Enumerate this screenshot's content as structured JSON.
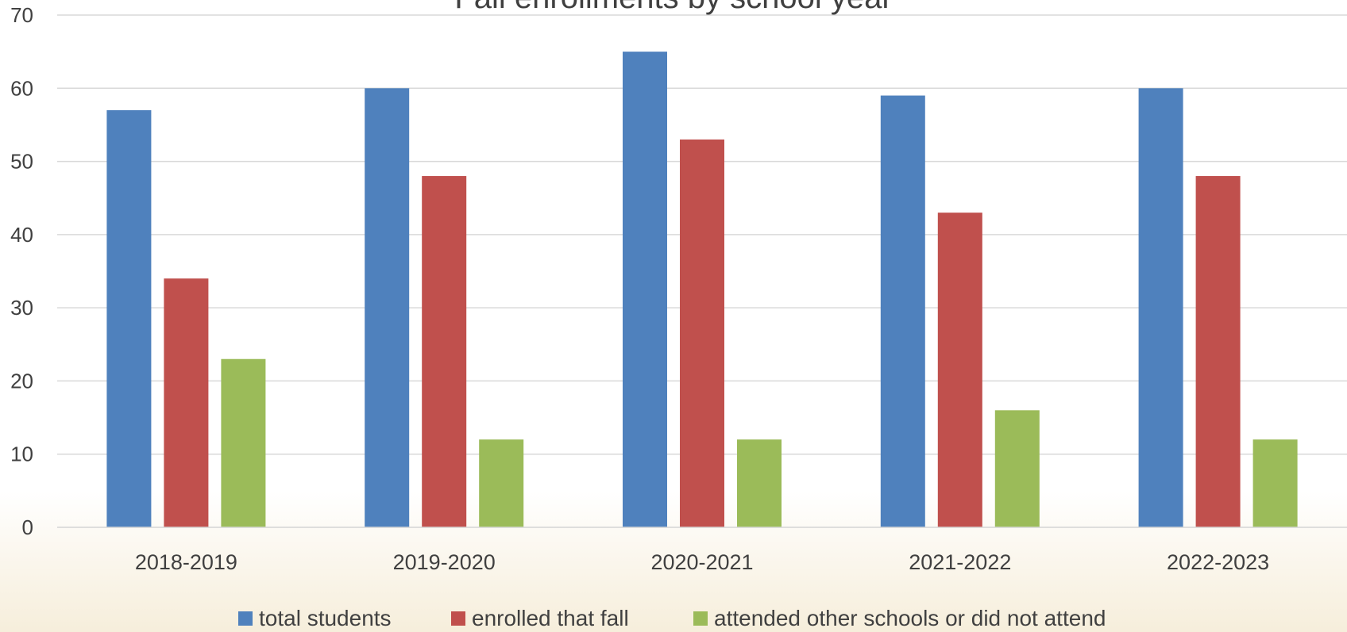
{
  "chart_data": {
    "type": "bar",
    "title": "Fall enrollments by school year",
    "xlabel": "",
    "ylabel": "",
    "ylim": [
      0,
      70
    ],
    "yticks": [
      0,
      10,
      20,
      30,
      40,
      50,
      60,
      70
    ],
    "grid": true,
    "legend_position": "bottom",
    "categories": [
      "2018-2019",
      "2019-2020",
      "2020-2021",
      "2021-2022",
      "2022-2023"
    ],
    "series": [
      {
        "name": "total students",
        "color": "#4f81bd",
        "values": [
          57,
          60,
          65,
          59,
          60
        ]
      },
      {
        "name": "enrolled that fall",
        "color": "#c0504d",
        "values": [
          34,
          48,
          53,
          43,
          48
        ]
      },
      {
        "name": "attended other schools or did not attend",
        "color": "#9bbb59",
        "values": [
          23,
          12,
          12,
          16,
          12
        ]
      }
    ]
  }
}
